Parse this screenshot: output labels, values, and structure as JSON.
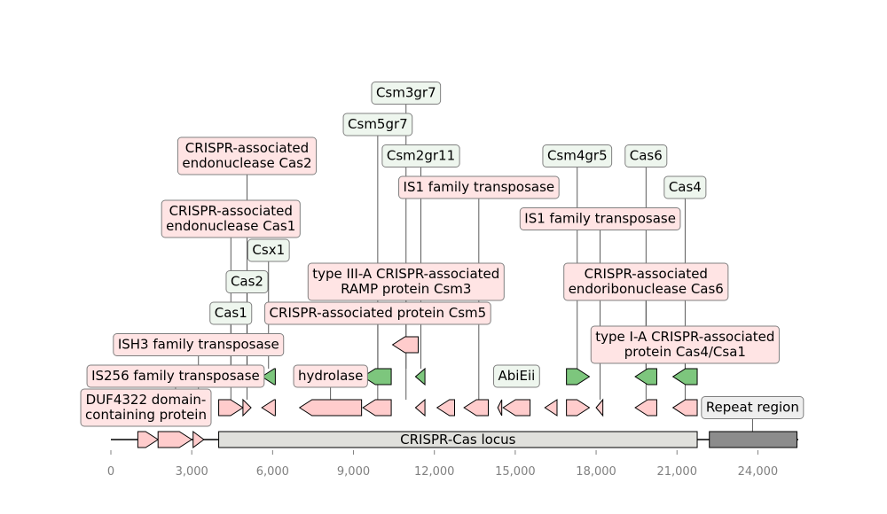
{
  "chart_data": {
    "type": "genome-map",
    "x_axis": {
      "min": 0,
      "max": 25500,
      "ticks": [
        0,
        3000,
        6000,
        9000,
        12000,
        15000,
        18000,
        21000,
        24000
      ],
      "tick_labels": [
        "0",
        "3,000",
        "6,000",
        "9,000",
        "12,000",
        "15,000",
        "18,000",
        "21,000",
        "24,000"
      ]
    },
    "regions": [
      {
        "label": "CRISPR-Cas locus",
        "start": 4000,
        "end": 21750,
        "color": "#e0e0dc"
      },
      {
        "label": "",
        "start": 22200,
        "end": 25450,
        "color": "#8c8c8c"
      }
    ],
    "backbone_genes": [
      {
        "start": 1000,
        "end": 1750,
        "strand": "+",
        "color": "#ffcccc"
      },
      {
        "start": 1750,
        "end": 3000,
        "strand": "+",
        "color": "#ffcccc"
      },
      {
        "start": 3050,
        "end": 3450,
        "strand": "+",
        "color": "#ffcccc"
      }
    ],
    "protein_genes": [
      {
        "start": 4000,
        "end": 4900,
        "strand": "+",
        "color": "#ffcccc"
      },
      {
        "start": 4900,
        "end": 5200,
        "strand": "+",
        "color": "#ffcccc"
      },
      {
        "start": 5600,
        "end": 6100,
        "strand": "-",
        "color": "#ffcccc"
      },
      {
        "start": 7000,
        "end": 9300,
        "strand": "-",
        "color": "#ffcccc"
      },
      {
        "start": 9350,
        "end": 10400,
        "strand": "-",
        "color": "#ffcccc"
      },
      {
        "start": 11300,
        "end": 11650,
        "strand": "-",
        "color": "#ffcccc"
      },
      {
        "start": 12100,
        "end": 12750,
        "strand": "-",
        "color": "#ffcccc"
      },
      {
        "start": 13100,
        "end": 14000,
        "strand": "-",
        "color": "#ffcccc"
      },
      {
        "start": 14350,
        "end": 14500,
        "strand": "-",
        "color": "#ffcccc"
      },
      {
        "start": 14550,
        "end": 15550,
        "strand": "-",
        "color": "#ffcccc"
      },
      {
        "start": 16100,
        "end": 16550,
        "strand": "-",
        "color": "#ffcccc"
      },
      {
        "start": 16900,
        "end": 17750,
        "strand": "+",
        "color": "#ffcccc"
      },
      {
        "start": 18000,
        "end": 18250,
        "strand": "-",
        "color": "#ffcccc"
      },
      {
        "start": 19450,
        "end": 20250,
        "strand": "-",
        "color": "#ffcccc"
      },
      {
        "start": 20850,
        "end": 21750,
        "strand": "-",
        "color": "#ffcccc"
      }
    ],
    "domain_genes": [
      {
        "start": 4000,
        "end": 4900,
        "strand": "+",
        "color": "#7dc67d"
      },
      {
        "start": 4900,
        "end": 5200,
        "strand": "+",
        "color": "#7dc67d"
      },
      {
        "start": 5600,
        "end": 6100,
        "strand": "-",
        "color": "#7dc67d"
      },
      {
        "start": 9350,
        "end": 10400,
        "strand": "-",
        "color": "#7dc67d"
      },
      {
        "start": 11300,
        "end": 11650,
        "strand": "-",
        "color": "#7dc67d"
      },
      {
        "start": 14550,
        "end": 15550,
        "strand": "-",
        "color": "#7dc67d"
      },
      {
        "start": 16900,
        "end": 17750,
        "strand": "+",
        "color": "#7dc67d"
      },
      {
        "start": 19450,
        "end": 20250,
        "strand": "-",
        "color": "#7dc67d"
      },
      {
        "start": 20850,
        "end": 21750,
        "strand": "-",
        "color": "#7dc67d"
      },
      {
        "start": 10450,
        "end": 11400,
        "strand": "-",
        "color": "#7dc67d",
        "row": 2
      }
    ],
    "extra_protein_genes": [
      {
        "start": 10450,
        "end": 11400,
        "strand": "-",
        "color": "#ffcccc",
        "row": 1
      }
    ],
    "annotations": [
      {
        "text": "DUF4322 domain-\ncontaining protein",
        "x": 1300,
        "row": 0,
        "kind": "protein"
      },
      {
        "text": "IS256 family transposase",
        "x": 2400,
        "row": 1,
        "kind": "protein"
      },
      {
        "text": "ISH3 family transposase",
        "x": 3250,
        "row": 2,
        "kind": "protein"
      },
      {
        "text": "Cas1",
        "x": 4450,
        "row": 3,
        "kind": "domain"
      },
      {
        "text": "Cas2",
        "x": 5050,
        "row": 4,
        "kind": "domain"
      },
      {
        "text": "Csx1",
        "x": 5850,
        "row": 5,
        "kind": "domain"
      },
      {
        "text": "CRISPR-associated\nendonuclease Cas1",
        "x": 4450,
        "row": 6,
        "kind": "protein"
      },
      {
        "text": "CRISPR-associated\nendonuclease Cas2",
        "x": 5050,
        "row": 8,
        "kind": "protein"
      },
      {
        "text": "hydrolase",
        "x": 8150,
        "row": 1,
        "kind": "protein"
      },
      {
        "text": "CRISPR-associated protein Csm5",
        "x": 9900,
        "row": 3,
        "kind": "protein"
      },
      {
        "text": "type III-A CRISPR-associated\nRAMP protein Csm3",
        "x": 10950,
        "row": 4,
        "kind": "protein"
      },
      {
        "text": "Csm5gr7",
        "x": 9900,
        "row": 9,
        "kind": "domain"
      },
      {
        "text": "Csm3gr7",
        "x": 10950,
        "row": 10,
        "kind": "domain"
      },
      {
        "text": "Csm2gr11",
        "x": 11500,
        "row": 8,
        "kind": "domain"
      },
      {
        "text": "IS1 family transposase",
        "x": 13650,
        "row": 7,
        "kind": "protein"
      },
      {
        "text": "AbiEii",
        "x": 15050,
        "row": 1,
        "kind": "domain"
      },
      {
        "text": "Csm4gr5",
        "x": 17300,
        "row": 8,
        "kind": "domain"
      },
      {
        "text": "IS1 family transposase",
        "x": 18150,
        "row": 6,
        "kind": "protein"
      },
      {
        "text": "CRISPR-associated\nendoribonuclease Cas6",
        "x": 19850,
        "row": 4,
        "kind": "protein"
      },
      {
        "text": "Cas6",
        "x": 19850,
        "row": 8,
        "kind": "domain"
      },
      {
        "text": "type I-A CRISPR-associated\nprotein Cas4/Csa1",
        "x": 21300,
        "row": 2,
        "kind": "protein"
      },
      {
        "text": "Cas4",
        "x": 21300,
        "row": 7,
        "kind": "domain"
      },
      {
        "text": "Repeat region",
        "x": 23800,
        "row": 0,
        "kind": "region"
      }
    ],
    "colors": {
      "protein_label_bg": "#ffe4e4",
      "domain_label_bg": "#eef6ee",
      "region_label_bg": "#eeeeee",
      "label_border": "#808080",
      "tick_color": "#808080"
    }
  }
}
